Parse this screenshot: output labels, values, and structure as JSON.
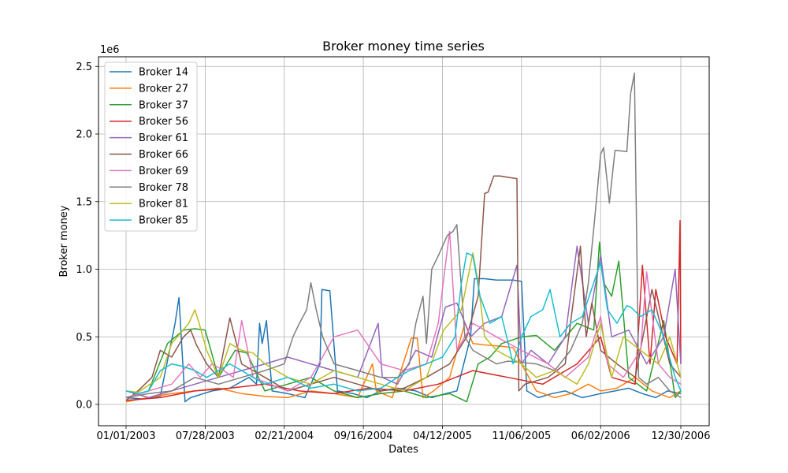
{
  "chart_data": {
    "type": "line",
    "title": "Broker money time series",
    "xlabel": "Dates",
    "ylabel": "Broker money",
    "y_offset_label": "1e6",
    "x_ticks": [
      "01/01/2003",
      "07/28/2003",
      "02/21/2004",
      "09/16/2004",
      "04/12/2005",
      "11/06/2005",
      "06/02/2006",
      "12/30/2006"
    ],
    "y_ticks": [
      "0.0",
      "0.5",
      "1.0",
      "1.5",
      "2.0",
      "2.5"
    ],
    "ylim": [
      -0.125,
      2.6
    ],
    "y_unit_multiplier": 1000000,
    "grid": true,
    "legend_position": "top-left",
    "series": [
      {
        "name": "Broker 14",
        "color": "#1f77b4",
        "x": [
          "01/01/2003",
          "02/15/2003",
          "04/01/2003",
          "05/10/2003",
          "05/20/2003",
          "06/05/2003",
          "06/20/2003",
          "08/15/2003",
          "10/01/2003",
          "11/20/2003",
          "12/10/2003",
          "12/18/2003",
          "12/25/2003",
          "01/05/2004",
          "01/20/2004",
          "03/01/2004",
          "04/15/2004",
          "05/25/2004",
          "05/30/2004",
          "06/20/2004",
          "07/10/2004",
          "08/20/2004",
          "09/25/2004",
          "11/01/2004",
          "12/15/2004",
          "02/01/2005",
          "03/15/2005",
          "04/20/2005",
          "05/20/2005",
          "06/25/2005",
          "07/05/2005",
          "08/01/2005",
          "09/01/2005",
          "10/15/2005",
          "11/06/2005",
          "11/20/2005",
          "12/20/2005",
          "01/25/2006",
          "03/01/2006",
          "04/15/2006",
          "06/02/2006",
          "07/10/2006",
          "08/15/2006",
          "09/20/2006",
          "10/25/2006",
          "11/25/2006",
          "12/30/2006"
        ],
        "y": [
          0.05,
          0.04,
          0.06,
          0.6,
          0.79,
          0.02,
          0.05,
          0.1,
          0.12,
          0.2,
          0.15,
          0.6,
          0.45,
          0.62,
          0.1,
          0.08,
          0.05,
          0.3,
          0.85,
          0.84,
          0.1,
          0.08,
          0.05,
          0.1,
          0.12,
          0.1,
          0.05,
          0.08,
          0.1,
          0.5,
          0.93,
          0.93,
          0.92,
          0.92,
          0.91,
          0.1,
          0.05,
          0.08,
          0.1,
          0.05,
          0.08,
          0.1,
          0.12,
          0.08,
          0.05,
          0.1,
          0.08
        ]
      },
      {
        "name": "Broker 27",
        "color": "#ff7f0e",
        "x": [
          "01/01/2003",
          "03/01/2003",
          "05/01/2003",
          "07/01/2003",
          "09/01/2003",
          "11/01/2003",
          "01/01/2004",
          "03/01/2004",
          "05/01/2004",
          "07/01/2004",
          "09/01/2004",
          "10/10/2004",
          "10/20/2004",
          "12/01/2004",
          "01/20/2005",
          "02/05/2005",
          "02/20/2005",
          "03/20/2005",
          "05/01/2005",
          "06/10/2005",
          "07/01/2005",
          "08/01/2005",
          "09/15/2005",
          "10/15/2005",
          "11/06/2005",
          "12/15/2005",
          "02/01/2006",
          "03/15/2006",
          "05/01/2006",
          "06/02/2006",
          "07/15/2006",
          "09/01/2006",
          "10/15/2006",
          "12/01/2006",
          "12/30/2006"
        ],
        "y": [
          0.02,
          0.05,
          0.08,
          0.1,
          0.12,
          0.08,
          0.06,
          0.05,
          0.1,
          0.08,
          0.05,
          0.3,
          0.1,
          0.05,
          0.49,
          0.49,
          0.05,
          0.1,
          0.2,
          0.6,
          0.45,
          0.44,
          0.43,
          0.42,
          0.3,
          0.1,
          0.05,
          0.08,
          0.15,
          0.1,
          0.12,
          0.2,
          0.1,
          0.05,
          0.1
        ]
      },
      {
        "name": "Broker 37",
        "color": "#2ca02c",
        "x": [
          "01/01/2003",
          "03/01/2003",
          "04/20/2003",
          "06/01/2003",
          "07/01/2003",
          "07/28/2003",
          "09/01/2003",
          "10/15/2003",
          "11/15/2003",
          "01/01/2004",
          "03/01/2004",
          "05/01/2004",
          "07/01/2004",
          "09/01/2004",
          "11/01/2004",
          "01/01/2005",
          "03/01/2005",
          "05/01/2005",
          "06/15/2005",
          "07/15/2005",
          "08/15/2005",
          "09/15/2005",
          "11/06/2005",
          "12/15/2005",
          "02/01/2006",
          "04/01/2006",
          "05/15/2006",
          "05/30/2006",
          "06/10/2006",
          "07/01/2006",
          "07/20/2006",
          "08/15/2006",
          "10/01/2006",
          "11/15/2006",
          "12/15/2006",
          "12/30/2006"
        ],
        "y": [
          0.05,
          0.1,
          0.45,
          0.55,
          0.56,
          0.55,
          0.2,
          0.4,
          0.38,
          0.1,
          0.15,
          0.2,
          0.1,
          0.05,
          0.08,
          0.1,
          0.05,
          0.08,
          0.02,
          0.3,
          0.35,
          0.45,
          0.5,
          0.51,
          0.4,
          0.6,
          0.55,
          1.2,
          0.9,
          0.8,
          1.06,
          0.2,
          0.1,
          0.62,
          0.05,
          0.1
        ]
      },
      {
        "name": "Broker 56",
        "color": "#d62728",
        "x": [
          "01/01/2003",
          "04/01/2003",
          "07/01/2003",
          "10/01/2003",
          "01/01/2004",
          "04/01/2004",
          "07/01/2004",
          "10/01/2004",
          "01/01/2005",
          "04/01/2005",
          "07/01/2005",
          "10/01/2005",
          "01/01/2006",
          "04/01/2006",
          "06/02/2006",
          "07/01/2006",
          "09/01/2006",
          "09/20/2006",
          "10/10/2006",
          "10/25/2006",
          "11/20/2006",
          "12/20/2006",
          "12/28/2006",
          "12/30/2006"
        ],
        "y": [
          0.03,
          0.05,
          0.1,
          0.12,
          0.15,
          0.1,
          0.08,
          0.12,
          0.1,
          0.15,
          0.25,
          0.2,
          0.15,
          0.3,
          0.5,
          0.2,
          0.15,
          1.03,
          0.3,
          0.85,
          0.5,
          0.3,
          1.36,
          0.3
        ]
      },
      {
        "name": "Broker 61",
        "color": "#9467bd",
        "x": [
          "01/01/2003",
          "03/01/2003",
          "05/01/2003",
          "07/01/2003",
          "09/01/2003",
          "11/01/2003",
          "01/01/2004",
          "03/01/2004",
          "05/01/2004",
          "07/01/2004",
          "09/01/2004",
          "10/25/2004",
          "11/05/2004",
          "12/15/2004",
          "02/01/2005",
          "03/15/2005",
          "04/20/2005",
          "05/20/2005",
          "06/25/2005",
          "08/01/2005",
          "09/15/2005",
          "10/25/2005",
          "11/06/2005",
          "12/01/2005",
          "01/15/2006",
          "03/01/2006",
          "04/01/2006",
          "05/01/2006",
          "06/02/2006",
          "07/01/2006",
          "08/15/2006",
          "10/01/2006",
          "11/15/2006",
          "12/15/2006",
          "12/30/2006"
        ],
        "y": [
          0.1,
          0.05,
          0.1,
          0.15,
          0.2,
          0.25,
          0.3,
          0.35,
          0.3,
          0.25,
          0.2,
          0.6,
          0.2,
          0.15,
          0.4,
          0.35,
          0.72,
          0.75,
          0.5,
          0.6,
          0.65,
          1.03,
          0.3,
          0.4,
          0.3,
          0.5,
          1.17,
          0.6,
          1.1,
          0.5,
          0.55,
          0.3,
          0.5,
          1.0,
          0.3
        ]
      },
      {
        "name": "Broker 66",
        "color": "#8c564b",
        "x": [
          "01/01/2003",
          "02/01/2003",
          "03/10/2003",
          "04/01/2003",
          "05/01/2003",
          "06/01/2003",
          "06/20/2003",
          "07/05/2003",
          "08/01/2003",
          "09/01/2003",
          "10/01/2003",
          "11/01/2003",
          "12/01/2003",
          "01/01/2004",
          "03/01/2004",
          "05/01/2004",
          "07/01/2004",
          "09/01/2004",
          "11/01/2004",
          "01/01/2005",
          "03/01/2005",
          "05/01/2005",
          "06/15/2005",
          "07/15/2005",
          "08/01/2005",
          "08/10/2005",
          "08/25/2005",
          "09/10/2005",
          "10/01/2005",
          "10/25/2005",
          "10/30/2005",
          "11/15/2005",
          "01/15/2006",
          "03/01/2006",
          "04/10/2006",
          "04/25/2006",
          "05/10/2006",
          "06/02/2006",
          "07/15/2006",
          "09/01/2006",
          "10/15/2006",
          "12/01/2006",
          "12/30/2006"
        ],
        "y": [
          0.03,
          0.1,
          0.2,
          0.4,
          0.35,
          0.5,
          0.55,
          0.44,
          0.3,
          0.2,
          0.64,
          0.3,
          0.25,
          0.2,
          0.1,
          0.15,
          0.2,
          0.15,
          0.1,
          0.12,
          0.2,
          0.3,
          0.5,
          0.8,
          1.56,
          1.57,
          1.69,
          1.69,
          1.68,
          1.67,
          0.1,
          0.15,
          0.2,
          0.3,
          1.17,
          0.5,
          0.75,
          0.4,
          0.3,
          0.2,
          0.85,
          0.3,
          0.2
        ]
      },
      {
        "name": "Broker 69",
        "color": "#e377c2",
        "x": [
          "01/01/2003",
          "03/01/2003",
          "05/01/2003",
          "06/15/2003",
          "07/15/2003",
          "08/15/2003",
          "09/15/2003",
          "10/10/2003",
          "11/01/2003",
          "12/01/2003",
          "01/15/2004",
          "03/01/2004",
          "05/01/2004",
          "07/01/2004",
          "09/01/2004",
          "11/01/2004",
          "01/01/2005",
          "03/01/2005",
          "04/01/2005",
          "04/15/2005",
          "05/01/2005",
          "05/20/2005",
          "07/01/2005",
          "09/01/2005",
          "11/06/2005",
          "01/15/2006",
          "03/01/2006",
          "05/01/2006",
          "06/02/2006",
          "06/20/2006",
          "08/01/2006",
          "09/15/2006",
          "10/01/2006",
          "11/01/2006",
          "12/01/2006",
          "12/30/2006"
        ],
        "y": [
          0.05,
          0.1,
          0.15,
          0.3,
          0.2,
          0.3,
          0.25,
          0.2,
          0.62,
          0.2,
          0.15,
          0.1,
          0.2,
          0.5,
          0.55,
          0.3,
          0.25,
          0.3,
          0.6,
          0.92,
          1.28,
          0.4,
          0.6,
          0.5,
          0.4,
          0.3,
          0.2,
          0.35,
          0.65,
          0.3,
          0.2,
          0.4,
          0.98,
          0.3,
          0.2,
          0.15
        ]
      },
      {
        "name": "Broker 78",
        "color": "#7f7f7f",
        "x": [
          "01/01/2003",
          "03/01/2003",
          "05/01/2003",
          "07/01/2003",
          "09/01/2003",
          "11/01/2003",
          "01/01/2004",
          "02/21/2004",
          "03/15/2004",
          "04/01/2004",
          "04/20/2004",
          "05/01/2004",
          "05/15/2004",
          "06/01/2004",
          "07/01/2004",
          "09/01/2004",
          "11/01/2004",
          "12/15/2004",
          "01/15/2005",
          "02/01/2005",
          "02/20/2005",
          "03/01/2005",
          "03/15/2005",
          "04/01/2005",
          "04/25/2005",
          "05/10/2005",
          "05/20/2005",
          "06/10/2005",
          "07/01/2005",
          "08/01/2005",
          "09/01/2005",
          "10/01/2005",
          "11/06/2005",
          "12/15/2005",
          "02/01/2006",
          "03/15/2006",
          "04/15/2006",
          "05/01/2006",
          "05/15/2006",
          "05/25/2006",
          "06/02/2006",
          "06/10/2006",
          "06/25/2006",
          "07/10/2006",
          "08/10/2006",
          "08/20/2006",
          "08/30/2006",
          "09/10/2006",
          "10/01/2006",
          "11/01/2006",
          "12/01/2006",
          "12/30/2006"
        ],
        "y": [
          0.05,
          0.08,
          0.1,
          0.2,
          0.15,
          0.2,
          0.25,
          0.3,
          0.5,
          0.6,
          0.7,
          0.9,
          0.7,
          0.5,
          0.3,
          0.25,
          0.2,
          0.2,
          0.3,
          0.6,
          0.8,
          0.45,
          1.0,
          1.1,
          1.25,
          1.28,
          1.33,
          0.5,
          0.4,
          0.35,
          0.3,
          0.32,
          0.31,
          0.3,
          0.25,
          0.4,
          0.6,
          0.9,
          1.3,
          1.6,
          1.85,
          1.9,
          1.49,
          1.88,
          1.87,
          2.3,
          2.45,
          0.2,
          0.15,
          0.2,
          0.1,
          0.05
        ]
      },
      {
        "name": "Broker 81",
        "color": "#bcbd22",
        "x": [
          "01/01/2003",
          "02/01/2003",
          "04/01/2003",
          "05/01/2003",
          "06/15/2003",
          "07/01/2003",
          "07/10/2003",
          "08/01/2003",
          "09/01/2003",
          "10/01/2003",
          "11/01/2003",
          "12/01/2003",
          "01/01/2004",
          "03/01/2004",
          "05/01/2004",
          "07/01/2004",
          "09/01/2004",
          "11/01/2004",
          "01/01/2005",
          "03/01/2005",
          "04/15/2005",
          "06/01/2005",
          "07/01/2005",
          "07/15/2005",
          "08/01/2005",
          "09/01/2005",
          "11/06/2005",
          "12/15/2005",
          "02/01/2006",
          "04/01/2006",
          "05/01/2006",
          "06/02/2006",
          "07/01/2006",
          "08/01/2006",
          "09/15/2006",
          "11/01/2006",
          "12/01/2006",
          "12/30/2006"
        ],
        "y": [
          0.1,
          0.09,
          0.2,
          0.45,
          0.6,
          0.7,
          0.62,
          0.4,
          0.2,
          0.45,
          0.4,
          0.38,
          0.3,
          0.2,
          0.15,
          0.25,
          0.2,
          0.15,
          0.1,
          0.2,
          0.55,
          0.7,
          1.12,
          0.9,
          0.5,
          0.4,
          0.3,
          0.2,
          0.25,
          0.15,
          0.3,
          0.6,
          0.2,
          0.5,
          0.4,
          0.3,
          0.5,
          0.2
        ]
      },
      {
        "name": "Broker 85",
        "color": "#17becf",
        "x": [
          "01/01/2003",
          "02/01/2003",
          "03/01/2003",
          "04/01/2003",
          "05/01/2003",
          "06/01/2003",
          "07/01/2003",
          "08/01/2003",
          "09/01/2003",
          "10/01/2003",
          "11/01/2003",
          "12/01/2003",
          "01/01/2004",
          "03/01/2004",
          "05/01/2004",
          "07/01/2004",
          "09/01/2004",
          "11/01/2004",
          "12/15/2004",
          "01/15/2005",
          "03/01/2005",
          "04/12/2005",
          "05/15/2005",
          "06/01/2005",
          "06/15/2005",
          "07/01/2005",
          "07/20/2005",
          "08/15/2005",
          "09/15/2005",
          "10/15/2005",
          "11/06/2005",
          "12/01/2005",
          "01/01/2006",
          "01/20/2006",
          "02/15/2006",
          "03/15/2006",
          "04/15/2006",
          "05/15/2006",
          "06/02/2006",
          "06/20/2006",
          "07/15/2006",
          "08/10/2006",
          "08/20/2006",
          "09/15/2006",
          "10/15/2006",
          "11/15/2006",
          "12/15/2006",
          "12/30/2006"
        ],
        "y": [
          0.1,
          0.08,
          0.1,
          0.25,
          0.3,
          0.28,
          0.25,
          0.2,
          0.25,
          0.3,
          0.25,
          0.2,
          0.15,
          0.2,
          0.12,
          0.15,
          0.1,
          0.12,
          0.2,
          0.25,
          0.3,
          0.35,
          0.5,
          0.9,
          1.12,
          1.1,
          0.8,
          0.6,
          0.65,
          0.3,
          0.5,
          0.65,
          0.7,
          0.85,
          0.5,
          0.6,
          0.65,
          0.9,
          1.05,
          0.7,
          0.6,
          0.73,
          0.72,
          0.65,
          0.7,
          0.5,
          0.2,
          0.1
        ]
      }
    ]
  }
}
